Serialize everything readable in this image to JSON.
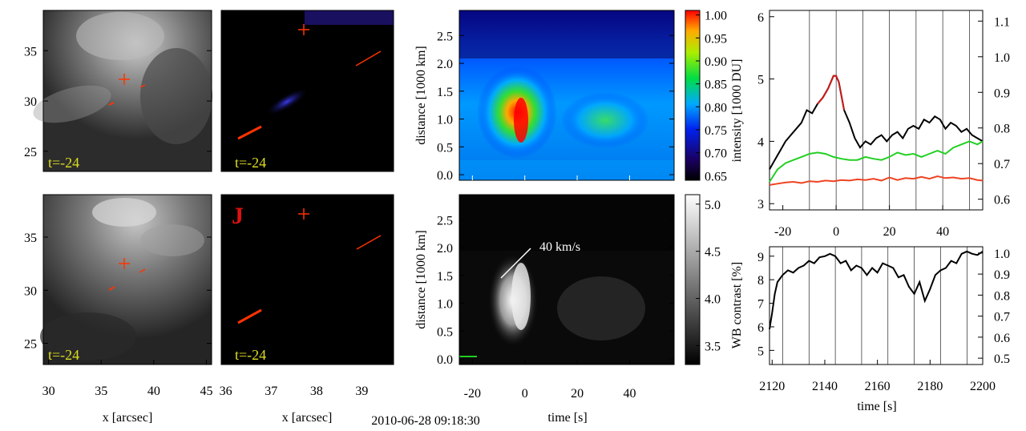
{
  "figure": {
    "timestamp": "2010-06-28 09:18:30"
  },
  "chart_data": [
    {
      "type": "image",
      "name": "panel-a-context-image",
      "xlabel": "",
      "ylabel": "",
      "yticks": [
        25,
        30,
        35
      ],
      "ylim": [
        23,
        39
      ],
      "frame_label": "t=-24"
    },
    {
      "type": "image",
      "name": "panel-b-context-image",
      "xlabel": "",
      "ylabel": "",
      "frame_label": "t=-24"
    },
    {
      "type": "heatmap",
      "name": "panel-c-timeslice",
      "ylabel": "distance [1000 km]",
      "yticks": [
        0.0,
        0.5,
        1.0,
        1.5,
        2.0,
        2.5
      ],
      "ylim": [
        -0.1,
        2.95
      ],
      "xlim": [
        -25,
        57
      ],
      "colorbar": {
        "ticks": [
          1.0,
          0.95,
          0.9,
          0.85,
          0.8,
          0.75,
          0.7,
          0.65
        ],
        "range": [
          0.64,
          1.01
        ]
      }
    },
    {
      "type": "line",
      "name": "panel-d-intensity",
      "ylabel": "intensity [1000 DU]",
      "yticks": [
        3,
        4,
        5,
        6
      ],
      "ylim": [
        2.9,
        6.1
      ],
      "yticks_right": [
        0.6,
        0.7,
        0.8,
        0.9,
        1.0,
        1.1
      ],
      "xticks": [
        -20,
        0,
        20,
        40
      ],
      "xlim": [
        -25,
        55
      ],
      "vlines": [
        -10,
        0,
        10,
        20,
        30,
        40,
        50
      ],
      "series": [
        {
          "name": "black",
          "color": "#000000",
          "x": [
            -25,
            -23,
            -21,
            -19,
            -17,
            -15,
            -13,
            -11,
            -9,
            -7,
            -5,
            -3,
            -1,
            0,
            1,
            3,
            5,
            7,
            9,
            11,
            13,
            15,
            17,
            19,
            21,
            23,
            25,
            27,
            29,
            31,
            33,
            35,
            37,
            39,
            41,
            43,
            45,
            47,
            49,
            51,
            53,
            55
          ],
          "y": [
            3.55,
            3.7,
            3.85,
            4.0,
            4.1,
            4.2,
            4.3,
            4.5,
            4.45,
            4.6,
            4.7,
            4.85,
            5.05,
            5.05,
            4.95,
            4.5,
            4.3,
            4.05,
            3.9,
            4.0,
            3.95,
            4.05,
            4.1,
            4.0,
            4.1,
            4.15,
            4.05,
            4.2,
            4.25,
            4.2,
            4.35,
            4.3,
            4.4,
            4.35,
            4.2,
            4.3,
            4.25,
            4.15,
            4.2,
            4.1,
            4.05,
            4.0
          ]
        },
        {
          "name": "red-highlight",
          "color": "#cc1a1a",
          "x": [
            -7,
            -5,
            -3,
            -1,
            0,
            1,
            3
          ],
          "y": [
            4.6,
            4.7,
            4.85,
            5.05,
            5.05,
            4.95,
            4.5
          ]
        },
        {
          "name": "green",
          "color": "#22d022",
          "x": [
            -25,
            -22,
            -19,
            -16,
            -13,
            -10,
            -7,
            -4,
            -1,
            2,
            5,
            8,
            11,
            14,
            17,
            20,
            23,
            26,
            29,
            32,
            35,
            38,
            41,
            44,
            47,
            50,
            53,
            55
          ],
          "y": [
            3.35,
            3.55,
            3.65,
            3.7,
            3.75,
            3.8,
            3.82,
            3.8,
            3.75,
            3.72,
            3.7,
            3.7,
            3.75,
            3.72,
            3.7,
            3.75,
            3.82,
            3.78,
            3.8,
            3.75,
            3.8,
            3.85,
            3.8,
            3.9,
            3.95,
            4.0,
            3.95,
            4.0
          ]
        },
        {
          "name": "orange-red",
          "color": "#ee4422",
          "x": [
            -25,
            -22,
            -19,
            -16,
            -13,
            -10,
            -7,
            -4,
            -1,
            2,
            5,
            8,
            11,
            14,
            17,
            20,
            23,
            26,
            29,
            32,
            35,
            38,
            41,
            44,
            47,
            50,
            53,
            55
          ],
          "y": [
            3.3,
            3.32,
            3.34,
            3.35,
            3.33,
            3.36,
            3.35,
            3.37,
            3.36,
            3.38,
            3.37,
            3.39,
            3.38,
            3.4,
            3.37,
            3.42,
            3.38,
            3.41,
            3.4,
            3.43,
            3.4,
            3.44,
            3.41,
            3.42,
            3.4,
            3.41,
            3.38,
            3.37
          ]
        }
      ]
    },
    {
      "type": "image",
      "name": "panel-e-context-image",
      "xlabel": "x [arcsec]",
      "ylabel": "",
      "yticks": [
        25,
        30,
        35
      ],
      "ylim": [
        23,
        39
      ],
      "xticks": [
        30,
        35,
        40,
        45
      ],
      "xlim": [
        29.5,
        45.5
      ],
      "frame_label": "t=-24"
    },
    {
      "type": "image",
      "name": "panel-f-context-image",
      "xlabel": "x [arcsec]",
      "ylabel": "",
      "xticks": [
        36,
        37,
        38,
        39
      ],
      "xlim": [
        35.9,
        39.7
      ],
      "frame_label": "t=-24",
      "panel_letter": "J"
    },
    {
      "type": "heatmap",
      "name": "panel-g-timeslice-gray",
      "xlabel": "time [s]",
      "ylabel": "distance [1000 km]",
      "yticks": [
        0.0,
        0.5,
        1.0,
        1.5,
        2.0,
        2.5
      ],
      "ylim": [
        -0.1,
        2.95
      ],
      "xticks": [
        -20,
        0,
        20,
        40
      ],
      "xlim": [
        -25,
        57
      ],
      "annotation": "40 km/s",
      "colorbar": {
        "ticks": [
          5.0,
          4.5,
          4.0,
          3.5
        ],
        "range": [
          3.3,
          5.1
        ]
      }
    },
    {
      "type": "line",
      "name": "panel-h-wb-contrast",
      "xlabel": "time [s]",
      "ylabel": "WB contrast [%]",
      "yticks": [
        5,
        6,
        7,
        8,
        9
      ],
      "ylim": [
        4.4,
        9.4
      ],
      "yticks_right": [
        0.5,
        0.6,
        0.7,
        0.8,
        0.9,
        1.0
      ],
      "xticks": [
        2120,
        2140,
        2160,
        2180,
        2200
      ],
      "xlim": [
        2119,
        2200
      ],
      "vlines": [
        2124,
        2134,
        2144,
        2154,
        2164,
        2174,
        2184,
        2194
      ],
      "series": [
        {
          "name": "wb-contrast",
          "color": "#000000",
          "x": [
            2119,
            2120,
            2121,
            2122,
            2124,
            2126,
            2128,
            2130,
            2132,
            2134,
            2136,
            2138,
            2140,
            2142,
            2144,
            2146,
            2148,
            2150,
            2152,
            2154,
            2156,
            2158,
            2160,
            2162,
            2164,
            2166,
            2168,
            2170,
            2172,
            2174,
            2176,
            2178,
            2180,
            2182,
            2184,
            2186,
            2188,
            2190,
            2192,
            2194,
            2196,
            2198,
            2200
          ],
          "y": [
            5.9,
            6.6,
            7.4,
            7.9,
            8.2,
            8.4,
            8.3,
            8.5,
            8.6,
            8.8,
            8.7,
            8.95,
            9.0,
            9.1,
            9.0,
            8.7,
            8.8,
            8.4,
            8.6,
            8.5,
            8.2,
            8.5,
            8.3,
            8.7,
            8.6,
            8.5,
            8.1,
            8.2,
            7.7,
            7.4,
            7.9,
            7.1,
            7.6,
            8.2,
            8.4,
            8.5,
            8.8,
            8.7,
            9.1,
            9.2,
            9.1,
            9.05,
            9.2
          ]
        }
      ]
    }
  ]
}
